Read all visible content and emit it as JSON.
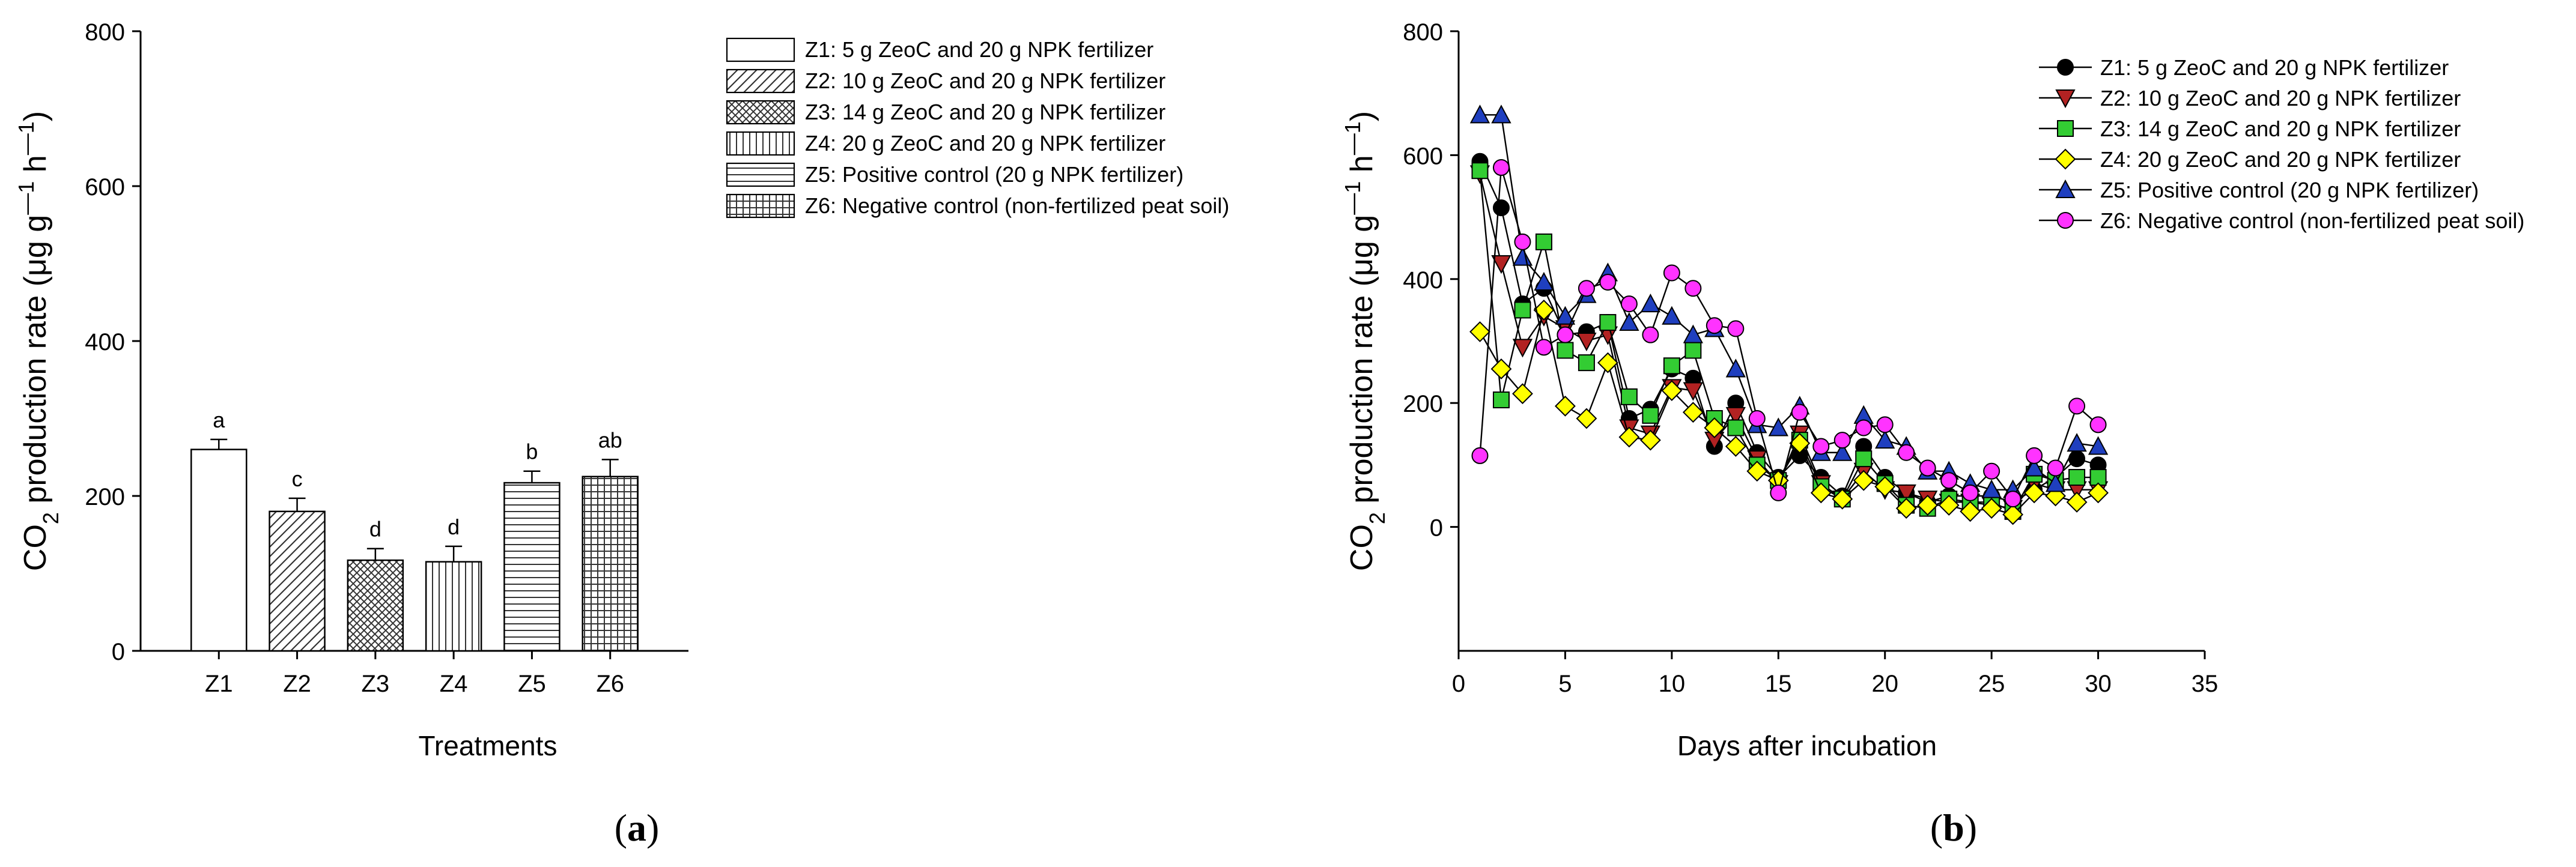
{
  "chart_data": [
    {
      "panel": "(a)",
      "panel_letter": "a",
      "type": "bar",
      "title": "",
      "xlabel": "Treatments",
      "ylabel": "CO2 production rate (μg g−1 h−1)",
      "ylabel_parts": {
        "pre": "CO",
        "sub": "2",
        "mid": " production rate (μg g",
        "sup1": "—1",
        "mid2": " h",
        "sup2": "—1",
        "post": ")"
      },
      "ylim": [
        0,
        800
      ],
      "yticks": [
        0,
        200,
        400,
        600,
        800
      ],
      "ytick_labels": [
        "0",
        "200",
        "400",
        "600",
        "800"
      ],
      "categories": [
        "Z1",
        "Z2",
        "Z3",
        "Z4",
        "Z5",
        "Z6"
      ],
      "values": [
        260,
        180,
        117,
        115,
        217,
        225
      ],
      "errors": [
        13,
        17,
        15,
        20,
        15,
        22
      ],
      "significance_letters": [
        "a",
        "c",
        "d",
        "d",
        "b",
        "ab"
      ],
      "patterns": [
        "none",
        "diag",
        "cross",
        "vert",
        "horiz",
        "grid"
      ],
      "legend": [
        "Z1: 5 g ZeoC and 20 g NPK fertilizer",
        "Z2: 10 g ZeoC and 20 g NPK fertilizer",
        "Z3: 14 g ZeoC and 20 g NPK fertilizer",
        "Z4: 20 g ZeoC and 20 g NPK fertilizer",
        "Z5: Positive control (20 g NPK fertilizer)",
        "Z6: Negative control (non-fertilized peat soil)"
      ],
      "legend_position": "top-right",
      "grid": false
    },
    {
      "panel": "(b)",
      "panel_letter": "b",
      "type": "line",
      "title": "",
      "xlabel": "Days after incubation",
      "ylabel": "CO2 production rate (μg g−1 h−1)",
      "ylabel_parts": {
        "pre": "CO",
        "sub": "2",
        "mid": " production rate (μg g",
        "sup1": "—1",
        "mid2": " h",
        "sup2": "—1",
        "post": ")"
      },
      "xlim": [
        0,
        35
      ],
      "ylim": [
        -200,
        800
      ],
      "xticks": [
        0,
        5,
        10,
        15,
        20,
        25,
        30,
        35
      ],
      "xtick_labels": [
        "0",
        "5",
        "10",
        "15",
        "20",
        "25",
        "30",
        "35"
      ],
      "yticks": [
        0,
        200,
        400,
        600,
        800
      ],
      "ytick_labels": [
        "0",
        "200",
        "400",
        "600",
        "800"
      ],
      "x": [
        1,
        2,
        3,
        4,
        5,
        6,
        7,
        8,
        9,
        10,
        11,
        12,
        13,
        14,
        15,
        16,
        17,
        18,
        19,
        20,
        21,
        22,
        23,
        24,
        25,
        26,
        27,
        28,
        29,
        30
      ],
      "series": [
        {
          "name": "Z1: 5 g ZeoC and 20 g NPK fertilizer",
          "marker": "circle",
          "color": "#000000",
          "values": [
            590,
            515,
            360,
            385,
            310,
            315,
            330,
            175,
            190,
            255,
            240,
            130,
            200,
            120,
            80,
            115,
            80,
            50,
            130,
            80,
            55,
            40,
            50,
            50,
            50,
            40,
            60,
            80,
            110,
            100
          ]
        },
        {
          "name": "Z2: 10 g ZeoC and 20 g NPK fertilizer",
          "marker": "triangle-down",
          "color": "#b22222",
          "values": [
            570,
            425,
            290,
            340,
            320,
            300,
            310,
            160,
            150,
            225,
            220,
            140,
            180,
            110,
            70,
            150,
            70,
            45,
            90,
            60,
            55,
            45,
            40,
            40,
            35,
            30,
            70,
            60,
            60,
            60
          ]
        },
        {
          "name": "Z3: 14 g ZeoC and 20 g NPK fertilizer",
          "marker": "square",
          "color": "#33cc33",
          "values": [
            575,
            205,
            350,
            460,
            285,
            265,
            330,
            210,
            180,
            260,
            285,
            175,
            160,
            100,
            75,
            140,
            65,
            45,
            110,
            70,
            35,
            30,
            45,
            40,
            40,
            25,
            85,
            75,
            80,
            80
          ]
        },
        {
          "name": "Z4: 20 g ZeoC and 20 g NPK fertilizer",
          "marker": "diamond",
          "color": "#ffff00",
          "values": [
            315,
            255,
            215,
            350,
            195,
            175,
            265,
            145,
            140,
            220,
            185,
            160,
            130,
            90,
            75,
            135,
            55,
            45,
            75,
            65,
            30,
            35,
            35,
            25,
            30,
            20,
            55,
            50,
            40,
            55
          ]
        },
        {
          "name": "Z5: Positive control (20 g NPK fertilizer)",
          "marker": "triangle-up",
          "color": "#1f3fbf",
          "values": [
            665,
            665,
            435,
            395,
            340,
            375,
            410,
            330,
            360,
            340,
            310,
            320,
            255,
            165,
            160,
            195,
            120,
            120,
            180,
            140,
            130,
            90,
            90,
            70,
            60,
            60,
            95,
            70,
            135,
            130
          ]
        },
        {
          "name": "Z6: Negative control (non-fertilized peat soil)",
          "marker": "circle",
          "color": "#ff33ff",
          "values": [
            115,
            580,
            460,
            290,
            310,
            385,
            395,
            360,
            310,
            410,
            385,
            325,
            320,
            175,
            55,
            185,
            130,
            140,
            160,
            165,
            120,
            95,
            75,
            55,
            90,
            45,
            115,
            95,
            195,
            165
          ]
        }
      ],
      "legend_position": "top-right",
      "grid": false
    }
  ]
}
